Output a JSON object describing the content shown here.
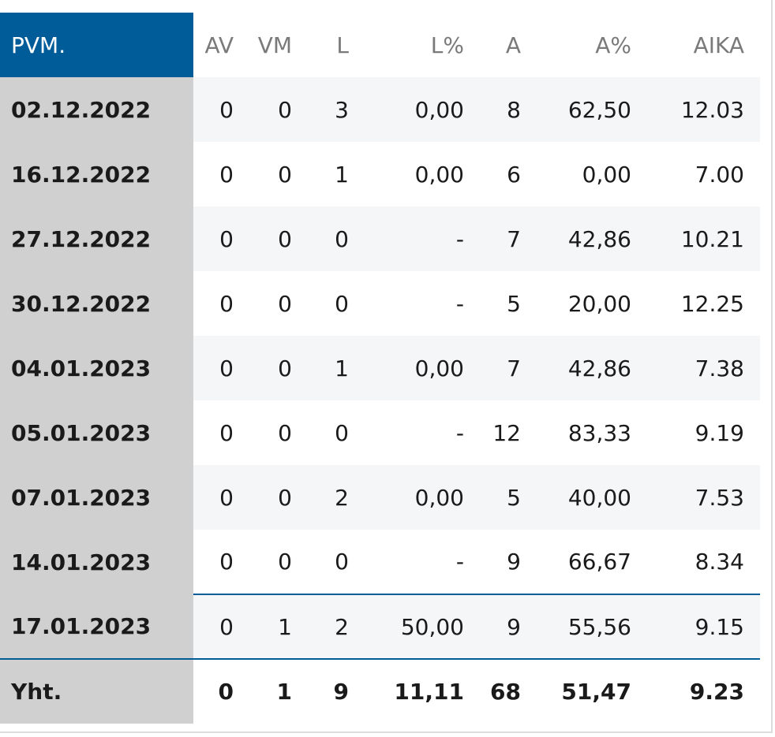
{
  "table": {
    "headers": [
      "PVM.",
      "AV",
      "VM",
      "L",
      "L%",
      "A",
      "A%",
      "AIKA"
    ],
    "rows": [
      [
        "02.12.2022",
        "0",
        "0",
        "3",
        "0,00",
        "8",
        "62,50",
        "12.03"
      ],
      [
        "16.12.2022",
        "0",
        "0",
        "1",
        "0,00",
        "6",
        "0,00",
        "7.00"
      ],
      [
        "27.12.2022",
        "0",
        "0",
        "0",
        "-",
        "7",
        "42,86",
        "10.21"
      ],
      [
        "30.12.2022",
        "0",
        "0",
        "0",
        "-",
        "5",
        "20,00",
        "12.25"
      ],
      [
        "04.01.2023",
        "0",
        "0",
        "1",
        "0,00",
        "7",
        "42,86",
        "7.38"
      ],
      [
        "05.01.2023",
        "0",
        "0",
        "0",
        "-",
        "12",
        "83,33",
        "9.19"
      ],
      [
        "07.01.2023",
        "0",
        "0",
        "2",
        "0,00",
        "5",
        "40,00",
        "7.53"
      ],
      [
        "14.01.2023",
        "0",
        "0",
        "0",
        "-",
        "9",
        "66,67",
        "8.34"
      ],
      [
        "17.01.2023",
        "0",
        "1",
        "2",
        "50,00",
        "9",
        "55,56",
        "9.15"
      ]
    ],
    "totals": [
      "Yht.",
      "0",
      "1",
      "9",
      "11,11",
      "68",
      "51,47",
      "9.23"
    ]
  },
  "colors": {
    "header_accent": "#005b99",
    "date_column_bg": "#d0d0d0",
    "alt_row_bg": "#f5f6f8",
    "divider": "#005b99"
  }
}
